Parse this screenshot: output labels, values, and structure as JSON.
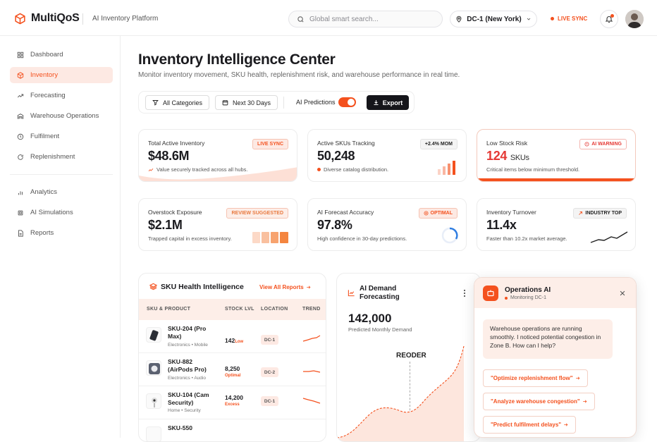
{
  "brand": {
    "name": "MultiQoS",
    "tagline": "AI Inventory Platform"
  },
  "header": {
    "search_placeholder": "Global smart search...",
    "location": "DC-1 (New York)",
    "live_sync": "LIVE SYNC"
  },
  "sidebar": {
    "items": [
      {
        "label": "Dashboard",
        "icon": "grid-icon"
      },
      {
        "label": "Inventory",
        "icon": "box-icon",
        "active": true
      },
      {
        "label": "Forecasting",
        "icon": "trend-icon"
      },
      {
        "label": "Warehouse Operations",
        "icon": "warehouse-icon"
      },
      {
        "label": "Fulfilment",
        "icon": "package-icon"
      },
      {
        "label": "Replenishment",
        "icon": "refresh-icon"
      }
    ],
    "items2": [
      {
        "label": "Analytics",
        "icon": "bar-chart-icon"
      },
      {
        "label": "AI Simulations",
        "icon": "chip-icon"
      },
      {
        "label": "Reports",
        "icon": "document-icon"
      }
    ]
  },
  "page": {
    "title": "Inventory Intelligence Center",
    "subtitle": "Monitor inventory movement, SKU health, replenishment risk, and warehouse performance in real time."
  },
  "filters": {
    "categories": "All Categories",
    "period": "Next 30 Days",
    "ai_predictions": "AI Predictions",
    "ai_predictions_on": true,
    "export": "Export"
  },
  "kpis": [
    {
      "label": "Total Active Inventory",
      "value": "$48.6M",
      "note": "Value securely tracked across all hubs.",
      "badge": "LIVE SYNC"
    },
    {
      "label": "Active SKUs Tracking",
      "value": "50,248",
      "note": "Diverse catalog distribution.",
      "badge": "+2.4% MOM"
    },
    {
      "label": "Low Stock Risk",
      "value": "124",
      "unit": "SKUs",
      "note": "Critical items below minimum threshold.",
      "badge": "AI WARNING"
    },
    {
      "label": "Overstock Exposure",
      "value": "$2.1M",
      "note": "Trapped capital in excess inventory.",
      "badge": "REVIEW SUGGESTED"
    },
    {
      "label": "AI Forecast Accuracy",
      "value": "97.8%",
      "note": "High confidence in 30-day predictions.",
      "badge": "OPTIMAL"
    },
    {
      "label": "Inventory Turnover",
      "value": "11.4x",
      "note": "Faster than 10.2x market average.",
      "badge": "INDUSTRY TOP"
    }
  ],
  "sku_panel": {
    "title": "SKU Health Intelligence",
    "link": "View All Reports",
    "columns": [
      "SKU & PRODUCT",
      "STOCK LVL",
      "LOCATION",
      "TREND"
    ],
    "rows": [
      {
        "name": "SKU-204 (Pro Max)",
        "category": "Electronics • Mobile",
        "stock": "142",
        "status": "Low",
        "location": "DC-1"
      },
      {
        "name": "SKU-882 (AirPods Pro)",
        "category": "Electronics • Audio",
        "stock": "8,250",
        "status": "Optimal",
        "location": "DC-2"
      },
      {
        "name": "SKU-104 (Cam Security)",
        "category": "Home • Security",
        "stock": "14,200",
        "status": "Excess",
        "location": "DC-1"
      },
      {
        "name": "SKU-550",
        "category": "",
        "stock": "",
        "status": "",
        "location": ""
      }
    ]
  },
  "forecast_panel": {
    "title": "AI Demand Forecasting",
    "value": "142,000",
    "caption": "Predicted Monthly Demand",
    "marker": "REODER"
  },
  "chat": {
    "title": "Operations AI",
    "status": "Monitoring DC-1",
    "message": "Warehouse operations are running smoothly. I noticed potential congestion in Zone B. How can I help?",
    "suggestions": [
      "\"Optimize replenishment flow\"",
      "\"Analyze warehouse congestion\"",
      "\"Predict fulfilment delays\""
    ]
  },
  "colors": {
    "accent": "#f4511e",
    "accent_soft": "#fde9e3",
    "dark": "#15151a",
    "danger": "#e53935"
  }
}
